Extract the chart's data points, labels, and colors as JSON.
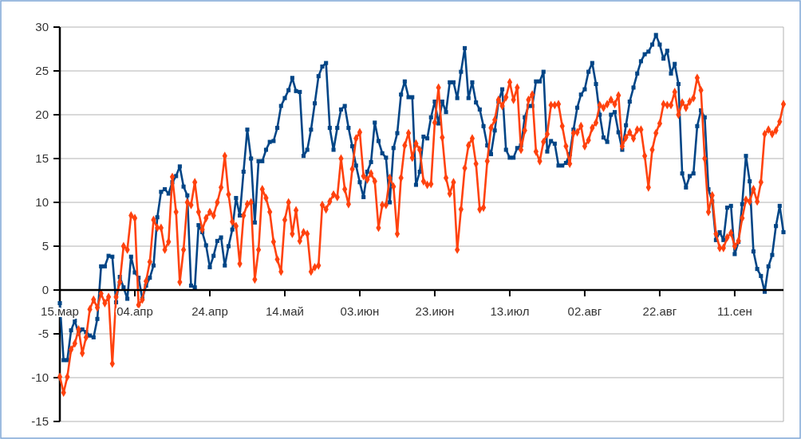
{
  "chart_data": {
    "type": "line",
    "grid": "y",
    "line_style": "solid",
    "xlim": [
      "--03-15",
      "--09-24"
    ],
    "xticks": [
      {
        "value": "--03-15",
        "label": "15.мар"
      },
      {
        "value": "--04-04",
        "label": "04.апр"
      },
      {
        "value": "--04-24",
        "label": "24.апр"
      },
      {
        "value": "--05-14",
        "label": "14.май"
      },
      {
        "value": "--06-03",
        "label": "03.июн"
      },
      {
        "value": "--06-23",
        "label": "23.июн"
      },
      {
        "value": "--07-13",
        "label": "13.июл"
      },
      {
        "value": "--08-02",
        "label": "02.авг"
      },
      {
        "value": "--08-22",
        "label": "22.авг"
      },
      {
        "value": "--09-11",
        "label": "11.сен"
      }
    ],
    "ylim": [
      -15,
      30
    ],
    "yticks": [
      -15,
      -10,
      -5,
      0,
      5,
      10,
      15,
      20,
      25,
      30
    ],
    "x": [
      "--03-15",
      "--03-16",
      "--03-17",
      "--03-18",
      "--03-19",
      "--03-20",
      "--03-21",
      "--03-22",
      "--03-23",
      "--03-24",
      "--03-25",
      "--03-26",
      "--03-27",
      "--03-28",
      "--03-29",
      "--03-30",
      "--03-31",
      "--04-01",
      "--04-02",
      "--04-03",
      "--04-04",
      "--04-05",
      "--04-06",
      "--04-07",
      "--04-08",
      "--04-09",
      "--04-10",
      "--04-11",
      "--04-12",
      "--04-13",
      "--04-14",
      "--04-15",
      "--04-16",
      "--04-17",
      "--04-18",
      "--04-19",
      "--04-20",
      "--04-21",
      "--04-22",
      "--04-23",
      "--04-24",
      "--04-25",
      "--04-26",
      "--04-27",
      "--04-28",
      "--04-29",
      "--04-30",
      "--05-01",
      "--05-02",
      "--05-03",
      "--05-04",
      "--05-05",
      "--05-06",
      "--05-07",
      "--05-08",
      "--05-09",
      "--05-10",
      "--05-11",
      "--05-12",
      "--05-13",
      "--05-14",
      "--05-15",
      "--05-16",
      "--05-17",
      "--05-18",
      "--05-19",
      "--05-20",
      "--05-21",
      "--05-22",
      "--05-23",
      "--05-24",
      "--05-25",
      "--05-26",
      "--05-27",
      "--05-28",
      "--05-29",
      "--05-30",
      "--05-31",
      "--06-01",
      "--06-02",
      "--06-03",
      "--06-04",
      "--06-05",
      "--06-06",
      "--06-07",
      "--06-08",
      "--06-09",
      "--06-10",
      "--06-11",
      "--06-12",
      "--06-13",
      "--06-14",
      "--06-15",
      "--06-16",
      "--06-17",
      "--06-18",
      "--06-19",
      "--06-20",
      "--06-21",
      "--06-22",
      "--06-23",
      "--06-24",
      "--06-25",
      "--06-26",
      "--06-27",
      "--06-28",
      "--06-29",
      "--06-30",
      "--07-01",
      "--07-02",
      "--07-03",
      "--07-04",
      "--07-05",
      "--07-06",
      "--07-07",
      "--07-08",
      "--07-09",
      "--07-10",
      "--07-11",
      "--07-12",
      "--07-13",
      "--07-14",
      "--07-15",
      "--07-16",
      "--07-17",
      "--07-18",
      "--07-19",
      "--07-20",
      "--07-21",
      "--07-22",
      "--07-23",
      "--07-24",
      "--07-25",
      "--07-26",
      "--07-27",
      "--07-28",
      "--07-29",
      "--07-30",
      "--07-31",
      "--08-01",
      "--08-02",
      "--08-03",
      "--08-04",
      "--08-05",
      "--08-06",
      "--08-07",
      "--08-08",
      "--08-09",
      "--08-10",
      "--08-11",
      "--08-12",
      "--08-13",
      "--08-14",
      "--08-15",
      "--08-16",
      "--08-17",
      "--08-18",
      "--08-19",
      "--08-20",
      "--08-21",
      "--08-22",
      "--08-23",
      "--08-24",
      "--08-25",
      "--08-26",
      "--08-27",
      "--08-28",
      "--08-29",
      "--08-30",
      "--08-31",
      "--09-01",
      "--09-02",
      "--09-03",
      "--09-04",
      "--09-05",
      "--09-06",
      "--09-07",
      "--09-08",
      "--09-09",
      "--09-10",
      "--09-11",
      "--09-12",
      "--09-13",
      "--09-14",
      "--09-15",
      "--09-16",
      "--09-17",
      "--09-18",
      "--09-19",
      "--09-20",
      "--09-21",
      "--09-22",
      "--09-23",
      "--09-24"
    ],
    "series": [
      {
        "color": "#004586",
        "marker": "square",
        "values": [
          -1.5,
          -8,
          -8,
          -4.6,
          -3.5,
          -5,
          -4.5,
          -4.8,
          -5.2,
          -5.4,
          -3.3,
          2.7,
          2.7,
          3.9,
          3.8,
          -1.4,
          1.5,
          0.3,
          -1,
          3.8,
          2,
          1.4,
          -1,
          0.5,
          1.4,
          2.8,
          8.3,
          11.2,
          11.5,
          11,
          12.3,
          13,
          14.1,
          11.8,
          10.8,
          0.5,
          0.3,
          7.4,
          6.6,
          5.1,
          2.6,
          3.9,
          5.6,
          6,
          2.8,
          5,
          6.9,
          10.5,
          8.5,
          13.5,
          18.3,
          15,
          7.7,
          14.7,
          14.7,
          16,
          16.9,
          17,
          18.5,
          21,
          21.9,
          22.8,
          24.2,
          22.7,
          22.6,
          15.3,
          16,
          18.3,
          21.3,
          24.4,
          25.5,
          25.9,
          18.5,
          16,
          18.5,
          20.6,
          21,
          18.5,
          16.4,
          14.2,
          12.3,
          10.6,
          13.5,
          14.6,
          19.1,
          17,
          15.6,
          15.1,
          10,
          16.2,
          17.9,
          22.3,
          23.8,
          22,
          22,
          12,
          13.5,
          17.5,
          17.3,
          19.7,
          21.5,
          19,
          21.5,
          20.3,
          23.7,
          23.7,
          21.9,
          24.9,
          27.6,
          21.9,
          23.7,
          21.4,
          20.6,
          18.7,
          16.5,
          15.5,
          18.2,
          21.5,
          22.9,
          16,
          15.1,
          15.1,
          16.2,
          16.5,
          19.7,
          21,
          21,
          23.8,
          23.8,
          24.9,
          15.8,
          17,
          16.7,
          14.2,
          14.2,
          14.5,
          15.5,
          18.3,
          20.8,
          22.3,
          22.9,
          24.9,
          25.9,
          23.5,
          20,
          17.4,
          16.9,
          20,
          20.3,
          18,
          16,
          18.8,
          21.5,
          23.1,
          24.7,
          26.1,
          26.9,
          27.2,
          28,
          29.1,
          28,
          26.4,
          27.3,
          24.7,
          25.8,
          23.5,
          13.3,
          11.7,
          13,
          13.3,
          18.7,
          20.5,
          19.7,
          11.5,
          10.1,
          5.7,
          6.6,
          5.7,
          9.4,
          9.6,
          4.1,
          5.5,
          9.8,
          15.3,
          12.4,
          4.4,
          2.4,
          1.6,
          -0.2,
          2.7,
          4,
          7.3,
          9.6,
          6.6
        ]
      },
      {
        "color": "#ff420e",
        "marker": "diamond",
        "values": [
          -9.9,
          -11.7,
          -9.9,
          -6.8,
          -6.1,
          -4.5,
          -7.2,
          -5.4,
          -2.2,
          -1.1,
          -2,
          -0.4,
          -1.5,
          -0.8,
          -8.4,
          -0.8,
          0.9,
          5,
          4.6,
          8.5,
          8.2,
          -1.7,
          -1.1,
          1,
          3.2,
          8,
          7.1,
          7.1,
          4.6,
          5.5,
          12.9,
          8.9,
          0.9,
          4.6,
          10,
          9.7,
          12.3,
          8.9,
          6.9,
          8.2,
          8.9,
          8.5,
          10,
          11.7,
          15.3,
          10.9,
          7.8,
          7.3,
          3,
          8.5,
          9.8,
          10,
          1.2,
          4.6,
          11.5,
          10.5,
          8.9,
          5.5,
          3.5,
          2.1,
          8,
          10,
          6.4,
          9.1,
          5.6,
          6.6,
          6.4,
          2.1,
          2.6,
          2.8,
          9.7,
          9.2,
          10.1,
          10.9,
          10.6,
          15,
          11.5,
          9.8,
          13.8,
          17.3,
          18,
          13,
          12.6,
          13.3,
          12.4,
          7.1,
          9.7,
          9.7,
          12.8,
          11.8,
          6.4,
          12.8,
          16.5,
          17.9,
          15.1,
          16.7,
          16,
          12.4,
          12,
          12.1,
          19.1,
          23.1,
          17.4,
          12.8,
          11,
          12.3,
          4.6,
          9.2,
          13.9,
          16.5,
          17.3,
          14.4,
          9.2,
          9.4,
          14.7,
          18.5,
          19.4,
          21.7,
          21,
          22,
          23.7,
          21.7,
          23.1,
          16,
          18.2,
          21.7,
          22.3,
          15.8,
          14.7,
          16.9,
          17.8,
          21.1,
          21.1,
          21.2,
          18.7,
          16.4,
          14.4,
          17.9,
          18,
          18.7,
          16.4,
          17.1,
          18.5,
          19.1,
          21.1,
          20.8,
          21.2,
          21.7,
          21.2,
          22.2,
          16.4,
          17.4,
          18,
          17.3,
          18.3,
          18.3,
          15.3,
          11.7,
          16,
          17.9,
          19,
          21.2,
          21.1,
          21.1,
          22.6,
          20,
          21.4,
          20.8,
          21.5,
          21.9,
          24.2,
          22.8,
          15,
          8.9,
          10.8,
          6.4,
          4.8,
          4.8,
          6,
          6.5,
          5,
          5.6,
          8.2,
          10.3,
          10.1,
          11.5,
          10.1,
          12.3,
          17.8,
          18.3,
          17.8,
          18.2,
          19.2,
          21.2
        ]
      }
    ]
  }
}
